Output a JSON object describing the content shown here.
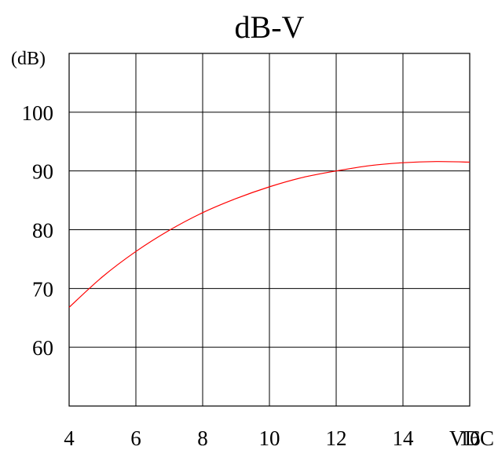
{
  "chart_data": {
    "type": "line",
    "title": "dB-V",
    "ylabel": "(dB)",
    "xlabel": "VDC",
    "xlim": [
      4,
      16
    ],
    "ylim": [
      50,
      110
    ],
    "x_ticks": [
      4,
      6,
      8,
      10,
      12,
      14,
      16
    ],
    "y_ticks": [
      60,
      70,
      80,
      90,
      100
    ],
    "grid": true,
    "series": [
      {
        "color": "#ff0000",
        "x": [
          4,
          5,
          6,
          7,
          8,
          9,
          10,
          11,
          12,
          13,
          14,
          15,
          16
        ],
        "y": [
          66.8,
          72.0,
          76.3,
          79.9,
          82.9,
          85.3,
          87.3,
          88.9,
          90.0,
          90.9,
          91.4,
          91.6,
          91.5
        ]
      }
    ]
  }
}
